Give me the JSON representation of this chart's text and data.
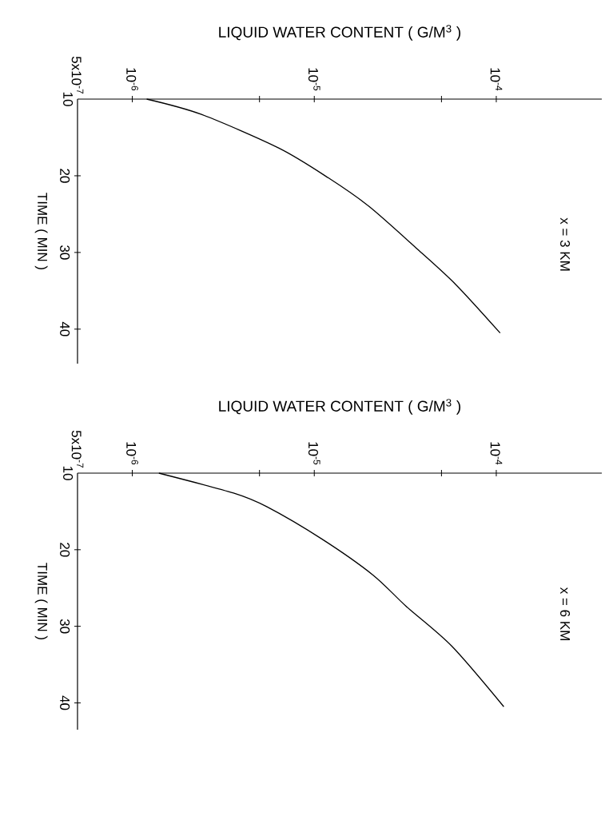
{
  "chart_data": [
    {
      "type": "line",
      "xlabel": "LIQUID WATER CONTENT  ( G/M$^{3}$ )",
      "ylabel": "TIME ( MIN )",
      "annotations": [
        "x = 3 KM"
      ],
      "log": "x",
      "xlim": [
        5e-07,
        0.00038
      ],
      "ylim": [
        44.5,
        10
      ],
      "xticks": [
        {
          "value": 5e-07,
          "label": "5x10$^{-7}$"
        },
        {
          "value": 1e-06,
          "label": "10$^{-6}$"
        },
        {
          "value": 5e-06,
          "label": null
        },
        {
          "value": 1e-05,
          "label": "10$^{-5}$"
        },
        {
          "value": 5e-05,
          "label": null
        },
        {
          "value": 0.0001,
          "label": "10$^{-4}$"
        }
      ],
      "yticks": [
        10,
        20,
        30,
        40
      ],
      "series": [
        {
          "color": "#000000",
          "x": [
            1.2e-06,
            2.4e-06,
            6.4e-06,
            1.2e-05,
            2e-05,
            3.7e-05,
            6e-05,
            0.000105
          ],
          "values": [
            10,
            12,
            16.4,
            20.3,
            24,
            29.6,
            34.2,
            40.5
          ]
        }
      ]
    },
    {
      "type": "line",
      "xlabel": "LIQUID WATER CONTENT  ( G/M$^{3}$ )",
      "ylabel": "TIME ( MIN )",
      "annotations": [
        "x = 6 KM"
      ],
      "log": "x",
      "xlim": [
        5e-07,
        0.00038
      ],
      "ylim": [
        43.5,
        10
      ],
      "xticks": [
        {
          "value": 5e-07,
          "label": "5x10$^{-7}$"
        },
        {
          "value": 1e-06,
          "label": "10$^{-6}$"
        },
        {
          "value": 5e-06,
          "label": null
        },
        {
          "value": 1e-05,
          "label": "10$^{-5}$"
        },
        {
          "value": 5e-05,
          "label": null
        },
        {
          "value": 0.0001,
          "label": "10$^{-4}$"
        }
      ],
      "yticks": [
        10,
        20,
        30,
        40
      ],
      "series": [
        {
          "color": "#000000",
          "x": [
            1.4e-06,
            3.6e-06,
            5.5e-06,
            1.1e-05,
            2.1e-05,
            3.2e-05,
            5.7e-05,
            0.00011
          ],
          "values": [
            10,
            12.6,
            14.4,
            18.6,
            23.3,
            27.4,
            32.6,
            40.5
          ]
        }
      ]
    }
  ]
}
